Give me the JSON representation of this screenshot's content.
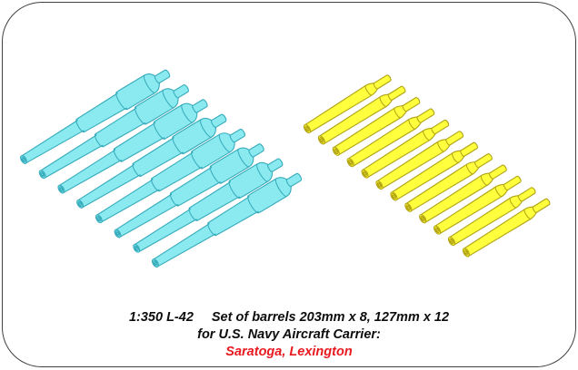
{
  "caption": {
    "scale_code": "1:350 L-42",
    "description": "Set of barrels 203mm x 8, 127mm x 12",
    "application": "for U.S. Navy Aircraft Carrier:",
    "ships": "Saratoga, Lexington"
  },
  "barrel_groups": [
    {
      "id": "barrels-203mm",
      "label": "203mm barrels",
      "count": 8,
      "fill": "#8aeaef",
      "outline": "#35aabb"
    },
    {
      "id": "barrels-127mm",
      "label": "127mm barrels",
      "count": 12,
      "fill": "#ffff3d",
      "outline": "#b1a212"
    }
  ],
  "colors": {
    "ships_text": "#e8191f",
    "caption_text": "#0d0d0d",
    "frame": "#3f3f3f",
    "background": "#ffffff"
  }
}
